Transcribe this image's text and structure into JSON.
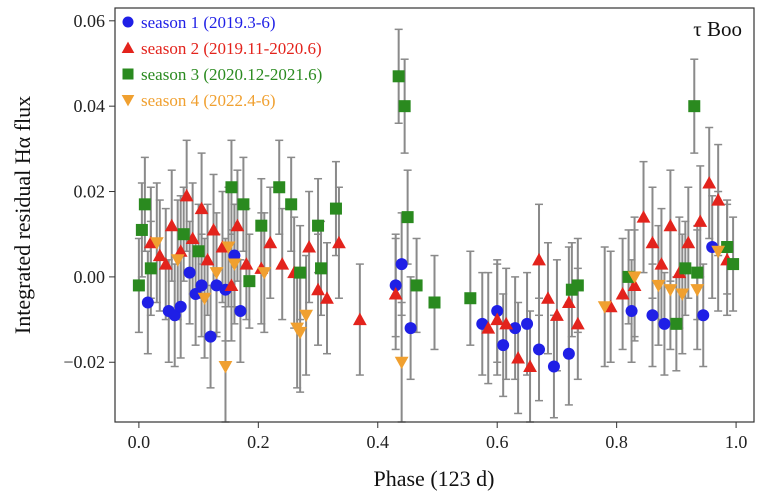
{
  "chart_data": {
    "type": "scatter",
    "xlabel": "Phase (123 d)",
    "ylabel": "Integrated residual Hα flux",
    "star_label": "τ Boo",
    "xlim": [
      -0.04,
      1.03
    ],
    "ylim": [
      -0.034,
      0.063
    ],
    "xticks": [
      0.0,
      0.2,
      0.4,
      0.6,
      0.8,
      1.0
    ],
    "xtick_labels": [
      "0.0",
      "0.2",
      "0.4",
      "0.6",
      "0.8",
      "1.0"
    ],
    "yticks": [
      -0.02,
      0.0,
      0.02,
      0.04,
      0.06
    ],
    "ytick_labels": [
      "−0.02",
      "0.00",
      "0.02",
      "0.04",
      "0.06"
    ],
    "grid": false,
    "legend_position": "top-left",
    "series": [
      {
        "name": "season 1 (2019.3-6)",
        "marker": "circle",
        "color": "#1f1fe6",
        "errorbar": 0.012,
        "points": [
          [
            0.015,
            -0.006
          ],
          [
            0.05,
            -0.008
          ],
          [
            0.06,
            -0.009
          ],
          [
            0.07,
            -0.007
          ],
          [
            0.085,
            0.001
          ],
          [
            0.095,
            -0.004
          ],
          [
            0.105,
            -0.002
          ],
          [
            0.12,
            -0.014
          ],
          [
            0.13,
            -0.002
          ],
          [
            0.145,
            -0.003
          ],
          [
            0.16,
            0.005
          ],
          [
            0.17,
            -0.008
          ],
          [
            0.43,
            -0.002
          ],
          [
            0.44,
            0.003
          ],
          [
            0.455,
            -0.012
          ],
          [
            0.575,
            -0.011
          ],
          [
            0.6,
            -0.008
          ],
          [
            0.61,
            -0.016
          ],
          [
            0.63,
            -0.012
          ],
          [
            0.65,
            -0.011
          ],
          [
            0.67,
            -0.017
          ],
          [
            0.695,
            -0.021
          ],
          [
            0.72,
            -0.018
          ],
          [
            0.825,
            -0.008
          ],
          [
            0.86,
            -0.009
          ],
          [
            0.88,
            -0.011
          ],
          [
            0.945,
            -0.009
          ],
          [
            0.96,
            0.007
          ]
        ]
      },
      {
        "name": "season 2 (2019.11-2020.6)",
        "marker": "triangle-up",
        "color": "#e3231c",
        "errorbar": 0.013,
        "points": [
          [
            0.02,
            0.008
          ],
          [
            0.035,
            0.005
          ],
          [
            0.045,
            0.003
          ],
          [
            0.055,
            0.012
          ],
          [
            0.07,
            0.006
          ],
          [
            0.08,
            0.019
          ],
          [
            0.09,
            0.009
          ],
          [
            0.105,
            0.016
          ],
          [
            0.115,
            0.004
          ],
          [
            0.125,
            0.011
          ],
          [
            0.14,
            0.007
          ],
          [
            0.155,
            -0.002
          ],
          [
            0.165,
            0.012
          ],
          [
            0.18,
            0.003
          ],
          [
            0.205,
            0.002
          ],
          [
            0.22,
            0.008
          ],
          [
            0.24,
            0.003
          ],
          [
            0.26,
            0.001
          ],
          [
            0.285,
            0.007
          ],
          [
            0.3,
            -0.003
          ],
          [
            0.315,
            -0.005
          ],
          [
            0.335,
            0.008
          ],
          [
            0.37,
            -0.01
          ],
          [
            0.43,
            -0.004
          ],
          [
            0.585,
            -0.012
          ],
          [
            0.6,
            -0.01
          ],
          [
            0.615,
            -0.011
          ],
          [
            0.635,
            -0.019
          ],
          [
            0.655,
            -0.021
          ],
          [
            0.67,
            0.004
          ],
          [
            0.685,
            -0.005
          ],
          [
            0.7,
            -0.009
          ],
          [
            0.72,
            -0.006
          ],
          [
            0.735,
            -0.011
          ],
          [
            0.79,
            -0.007
          ],
          [
            0.81,
            -0.004
          ],
          [
            0.83,
            -0.002
          ],
          [
            0.845,
            0.014
          ],
          [
            0.86,
            0.008
          ],
          [
            0.875,
            0.003
          ],
          [
            0.89,
            0.012
          ],
          [
            0.905,
            0.001
          ],
          [
            0.92,
            0.008
          ],
          [
            0.94,
            0.013
          ],
          [
            0.955,
            0.022
          ],
          [
            0.97,
            0.018
          ],
          [
            0.985,
            0.004
          ]
        ]
      },
      {
        "name": "season 3 (2020.12-2021.6)",
        "marker": "square",
        "color": "#2a8a1f",
        "errorbar": 0.011,
        "points": [
          [
            0.0,
            -0.002
          ],
          [
            0.005,
            0.011
          ],
          [
            0.01,
            0.017
          ],
          [
            0.02,
            0.002
          ],
          [
            0.075,
            0.01
          ],
          [
            0.1,
            0.006
          ],
          [
            0.155,
            0.021
          ],
          [
            0.175,
            0.017
          ],
          [
            0.185,
            -0.001
          ],
          [
            0.205,
            0.012
          ],
          [
            0.235,
            0.021
          ],
          [
            0.255,
            0.017
          ],
          [
            0.27,
            0.001
          ],
          [
            0.3,
            0.012
          ],
          [
            0.305,
            0.002
          ],
          [
            0.33,
            0.016
          ],
          [
            0.435,
            0.047
          ],
          [
            0.445,
            0.04
          ],
          [
            0.45,
            0.014
          ],
          [
            0.465,
            -0.002
          ],
          [
            0.495,
            -0.006
          ],
          [
            0.555,
            -0.005
          ],
          [
            0.725,
            -0.003
          ],
          [
            0.735,
            -0.002
          ],
          [
            0.82,
            0.0
          ],
          [
            0.9,
            -0.011
          ],
          [
            0.915,
            0.002
          ],
          [
            0.93,
            0.04
          ],
          [
            0.935,
            0.001
          ],
          [
            0.985,
            0.007
          ],
          [
            0.995,
            0.003
          ]
        ]
      },
      {
        "name": "season 4 (2022.4-6)",
        "marker": "triangle-down",
        "color": "#f0a030",
        "errorbar": 0.014,
        "points": [
          [
            0.03,
            0.008
          ],
          [
            0.065,
            0.004
          ],
          [
            0.11,
            -0.005
          ],
          [
            0.13,
            0.001
          ],
          [
            0.145,
            -0.021
          ],
          [
            0.15,
            0.007
          ],
          [
            0.16,
            0.003
          ],
          [
            0.21,
            0.001
          ],
          [
            0.265,
            -0.012
          ],
          [
            0.27,
            -0.013
          ],
          [
            0.28,
            -0.009
          ],
          [
            0.44,
            -0.02
          ],
          [
            0.78,
            -0.007
          ],
          [
            0.83,
            0.0
          ],
          [
            0.87,
            -0.002
          ],
          [
            0.89,
            -0.003
          ],
          [
            0.91,
            -0.004
          ],
          [
            0.935,
            -0.003
          ],
          [
            0.97,
            0.006
          ]
        ]
      }
    ]
  }
}
